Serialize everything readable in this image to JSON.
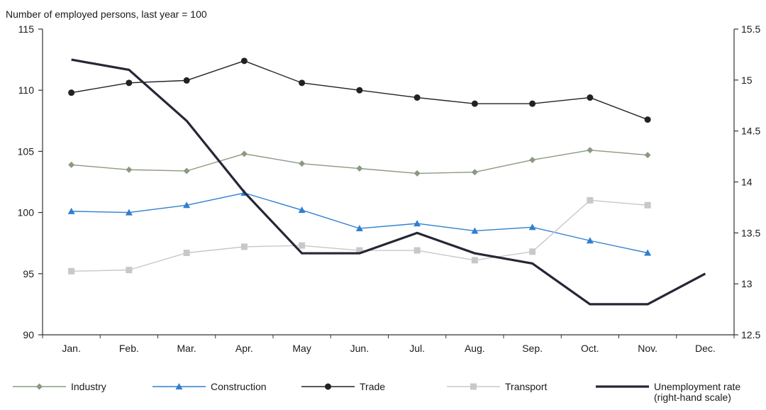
{
  "chart_data": {
    "type": "line",
    "ylabel": "Number of employed persons, last year = 100",
    "categories": [
      "Jan.",
      "Feb.",
      "Mar.",
      "Apr.",
      "May",
      "Jun.",
      "Jul.",
      "Aug.",
      "Sep.",
      "Oct.",
      "Nov.",
      "Dec."
    ],
    "y_left": {
      "ylim": [
        90,
        115
      ],
      "ticks": [
        90,
        95,
        100,
        105,
        110,
        115
      ]
    },
    "y_right": {
      "ylim": [
        12.5,
        15.5
      ],
      "ticks": [
        12.5,
        13,
        13.5,
        14,
        14.5,
        15,
        15.5
      ]
    },
    "grid": false,
    "legend_position": "bottom",
    "series": [
      {
        "name": "Industry",
        "axis": "left",
        "color": "#8a9a80",
        "marker": "diamond",
        "values": [
          103.9,
          103.5,
          103.4,
          104.8,
          104.0,
          103.6,
          103.2,
          103.3,
          104.3,
          105.1,
          104.7,
          null
        ]
      },
      {
        "name": "Construction",
        "axis": "left",
        "color": "#2f7fd0",
        "marker": "triangle",
        "values": [
          100.1,
          100.0,
          100.6,
          101.6,
          100.2,
          98.7,
          99.1,
          98.5,
          98.8,
          97.7,
          96.7,
          null
        ]
      },
      {
        "name": "Trade",
        "axis": "left",
        "color": "#222222",
        "marker": "circle",
        "values": [
          109.8,
          110.6,
          110.8,
          112.4,
          110.6,
          110.0,
          109.4,
          108.9,
          108.9,
          109.4,
          107.6,
          null
        ]
      },
      {
        "name": "Transport",
        "axis": "left",
        "color": "#c8c8c8",
        "marker": "square",
        "values": [
          95.2,
          95.3,
          96.7,
          97.2,
          97.3,
          96.9,
          96.9,
          96.1,
          96.8,
          101.0,
          100.6,
          null
        ]
      },
      {
        "name": "Unemployment rate\n(right-hand scale)",
        "axis": "right",
        "color": "#262636",
        "marker": "none",
        "values": [
          15.2,
          15.1,
          14.6,
          13.9,
          13.3,
          13.3,
          13.5,
          13.3,
          13.2,
          12.8,
          12.8,
          13.1
        ]
      }
    ]
  }
}
